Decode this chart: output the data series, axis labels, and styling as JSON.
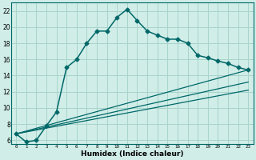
{
  "xlabel": "Humidex (Indice chaleur)",
  "background_color": "#d0ede8",
  "grid_color": "#a8d4cc",
  "line_color": "#006868",
  "xlim": [
    -0.5,
    23.5
  ],
  "ylim": [
    5.5,
    23
  ],
  "yticks": [
    6,
    8,
    10,
    12,
    14,
    16,
    18,
    20,
    22
  ],
  "xticks": [
    0,
    1,
    2,
    3,
    4,
    5,
    6,
    7,
    8,
    9,
    10,
    11,
    12,
    13,
    14,
    15,
    16,
    17,
    18,
    19,
    20,
    21,
    22,
    23
  ],
  "line1_x": [
    0,
    1,
    2,
    3,
    4,
    5,
    6,
    7,
    8,
    9,
    10,
    11,
    12,
    13,
    14,
    15,
    16,
    17,
    18,
    19,
    20,
    21,
    22,
    23
  ],
  "line1_y": [
    6.8,
    5.8,
    6.0,
    7.8,
    9.5,
    15.0,
    16.0,
    18.0,
    19.5,
    19.5,
    21.2,
    22.2,
    20.8,
    19.5,
    19.0,
    18.5,
    18.5,
    18.0,
    16.5,
    16.2,
    15.8,
    15.5,
    15.0,
    14.7
  ],
  "line2_x": [
    0,
    23
  ],
  "line2_y": [
    6.8,
    14.7
  ],
  "line3_x": [
    0,
    23
  ],
  "line3_y": [
    6.8,
    13.2
  ],
  "line4_x": [
    0,
    23
  ],
  "line4_y": [
    6.8,
    12.2
  ]
}
